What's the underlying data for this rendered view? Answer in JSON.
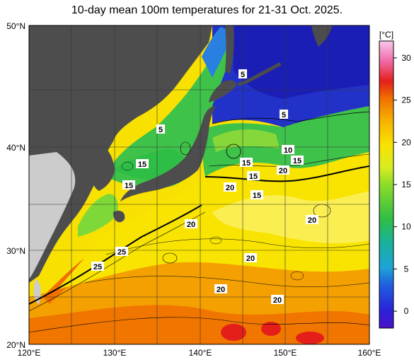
{
  "title": "10-day mean 100m temperatures for 21-31 Oct. 2025.",
  "lon_labels": [
    "120°E",
    "130°E",
    "140°E",
    "150°E",
    "160°E"
  ],
  "lat_labels": [
    "50°N",
    "40°N",
    "30°N",
    "20°N"
  ],
  "colorbar": {
    "unit": "[°C]",
    "ticks": [
      "30",
      "25",
      "20",
      "15",
      "10",
      "5",
      "0"
    ],
    "range": [
      -2,
      32
    ]
  },
  "contour_labels": [
    "5",
    "5",
    "5",
    "15",
    "15",
    "15",
    "15",
    "15",
    "10",
    "15",
    "20",
    "20",
    "20",
    "20",
    "20",
    "20",
    "20",
    "20",
    "25",
    "25"
  ],
  "colors": {
    "land_dark": "#4d4d4d",
    "land_light": "#cccccc",
    "cold": "#1a2bd4",
    "mid": "#3fc24a",
    "warm": "#f5d800",
    "hot": "#f07a00"
  }
}
